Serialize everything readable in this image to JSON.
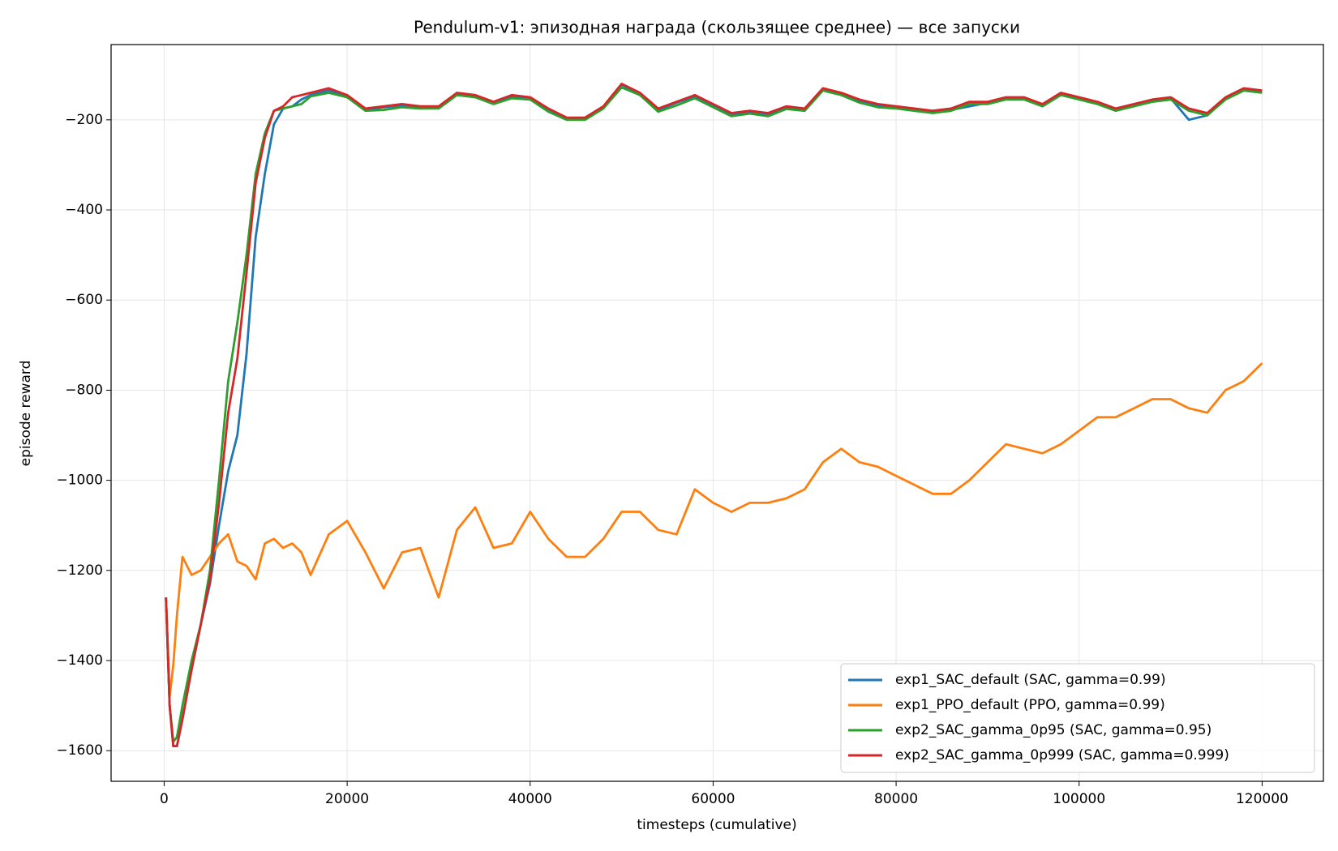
{
  "chart_data": {
    "type": "line",
    "title": "Pendulum-v1: эпизодная награда (скользящее среднее) — все запуски",
    "xlabel": "timesteps (cumulative)",
    "ylabel": "episode reward",
    "x": [
      200,
      600,
      1000,
      1400,
      2000,
      3000,
      4000,
      5000,
      6000,
      7000,
      8000,
      9000,
      10000,
      11000,
      12000,
      13000,
      14000,
      15000,
      16000,
      18000,
      20000,
      22000,
      24000,
      26000,
      28000,
      30000,
      32000,
      34000,
      36000,
      38000,
      40000,
      42000,
      44000,
      46000,
      48000,
      50000,
      52000,
      54000,
      56000,
      58000,
      60000,
      62000,
      64000,
      66000,
      68000,
      70000,
      72000,
      74000,
      76000,
      78000,
      80000,
      82000,
      84000,
      86000,
      88000,
      90000,
      92000,
      94000,
      96000,
      98000,
      100000,
      102000,
      104000,
      106000,
      108000,
      110000,
      112000,
      114000,
      116000,
      118000,
      120000
    ],
    "series": [
      {
        "name": "exp1_SAC_default (SAC, gamma=0.99)",
        "color": "#1f77b4",
        "values": [
          -1260,
          -1500,
          -1590,
          -1590,
          -1530,
          -1420,
          -1320,
          -1230,
          -1100,
          -980,
          -900,
          -720,
          -460,
          -320,
          -210,
          -175,
          -170,
          -155,
          -145,
          -135,
          -148,
          -178,
          -172,
          -168,
          -172,
          -172,
          -142,
          -148,
          -162,
          -148,
          -152,
          -178,
          -198,
          -198,
          -172,
          -122,
          -142,
          -178,
          -162,
          -148,
          -168,
          -188,
          -182,
          -188,
          -172,
          -178,
          -132,
          -142,
          -158,
          -168,
          -172,
          -178,
          -182,
          -178,
          -170,
          -162,
          -152,
          -152,
          -168,
          -142,
          -152,
          -162,
          -178,
          -168,
          -158,
          -152,
          -200,
          -190,
          -152,
          -132,
          -138
        ]
      },
      {
        "name": "exp1_PPO_default (PPO, gamma=0.99)",
        "color": "#ff7f0e",
        "values": [
          -1260,
          -1480,
          -1410,
          -1300,
          -1170,
          -1210,
          -1200,
          -1170,
          -1140,
          -1120,
          -1180,
          -1190,
          -1220,
          -1140,
          -1130,
          -1150,
          -1140,
          -1160,
          -1210,
          -1120,
          -1090,
          -1160,
          -1240,
          -1160,
          -1150,
          -1260,
          -1110,
          -1060,
          -1150,
          -1140,
          -1070,
          -1130,
          -1170,
          -1170,
          -1130,
          -1070,
          -1070,
          -1110,
          -1120,
          -1020,
          -1050,
          -1070,
          -1050,
          -1050,
          -1040,
          -1020,
          -960,
          -930,
          -960,
          -970,
          -990,
          -1010,
          -1030,
          -1030,
          -1000,
          -960,
          -920,
          -930,
          -940,
          -920,
          -890,
          -860,
          -860,
          -840,
          -820,
          -820,
          -840,
          -850,
          -800,
          -780,
          -740
        ]
      },
      {
        "name": "exp2_SAC_gamma_0p95 (SAC, gamma=0.95)",
        "color": "#2ca02c",
        "values": [
          -1260,
          -1500,
          -1580,
          -1570,
          -1500,
          -1400,
          -1320,
          -1200,
          -1000,
          -780,
          -650,
          -500,
          -320,
          -230,
          -180,
          -175,
          -170,
          -165,
          -148,
          -140,
          -150,
          -180,
          -178,
          -172,
          -175,
          -175,
          -145,
          -150,
          -165,
          -152,
          -155,
          -182,
          -200,
          -200,
          -175,
          -128,
          -145,
          -182,
          -168,
          -152,
          -172,
          -192,
          -186,
          -192,
          -176,
          -180,
          -135,
          -145,
          -162,
          -172,
          -175,
          -180,
          -185,
          -180,
          -165,
          -165,
          -155,
          -155,
          -170,
          -145,
          -155,
          -165,
          -180,
          -170,
          -160,
          -155,
          -180,
          -190,
          -155,
          -135,
          -140
        ]
      },
      {
        "name": "exp2_SAC_gamma_0p999 (SAC, gamma=0.999)",
        "color": "#d62728",
        "values": [
          -1260,
          -1500,
          -1590,
          -1590,
          -1530,
          -1420,
          -1320,
          -1220,
          -1050,
          -850,
          -730,
          -540,
          -340,
          -240,
          -180,
          -170,
          -150,
          -145,
          -140,
          -130,
          -145,
          -175,
          -170,
          -165,
          -170,
          -170,
          -140,
          -145,
          -160,
          -145,
          -150,
          -175,
          -195,
          -195,
          -170,
          -120,
          -140,
          -175,
          -160,
          -145,
          -165,
          -185,
          -180,
          -185,
          -170,
          -175,
          -130,
          -140,
          -155,
          -165,
          -170,
          -175,
          -180,
          -175,
          -160,
          -160,
          -150,
          -150,
          -165,
          -140,
          -150,
          -160,
          -175,
          -165,
          -155,
          -150,
          -175,
          -185,
          -150,
          -130,
          -135
        ]
      }
    ],
    "xlim": [
      -5800,
      126700
    ],
    "ylim": [
      -1668,
      -33
    ],
    "xticks": [
      0,
      20000,
      40000,
      60000,
      80000,
      100000,
      120000
    ],
    "yticks": [
      {
        "value": -1600,
        "label": "−1600"
      },
      {
        "value": -1400,
        "label": "−1400"
      },
      {
        "value": -1200,
        "label": "−1200"
      },
      {
        "value": -1000,
        "label": "−1000"
      },
      {
        "value": -800,
        "label": "−800"
      },
      {
        "value": -600,
        "label": "−600"
      },
      {
        "value": -400,
        "label": "−400"
      },
      {
        "value": -200,
        "label": "−200"
      }
    ],
    "grid": true,
    "legend": "lower right"
  }
}
